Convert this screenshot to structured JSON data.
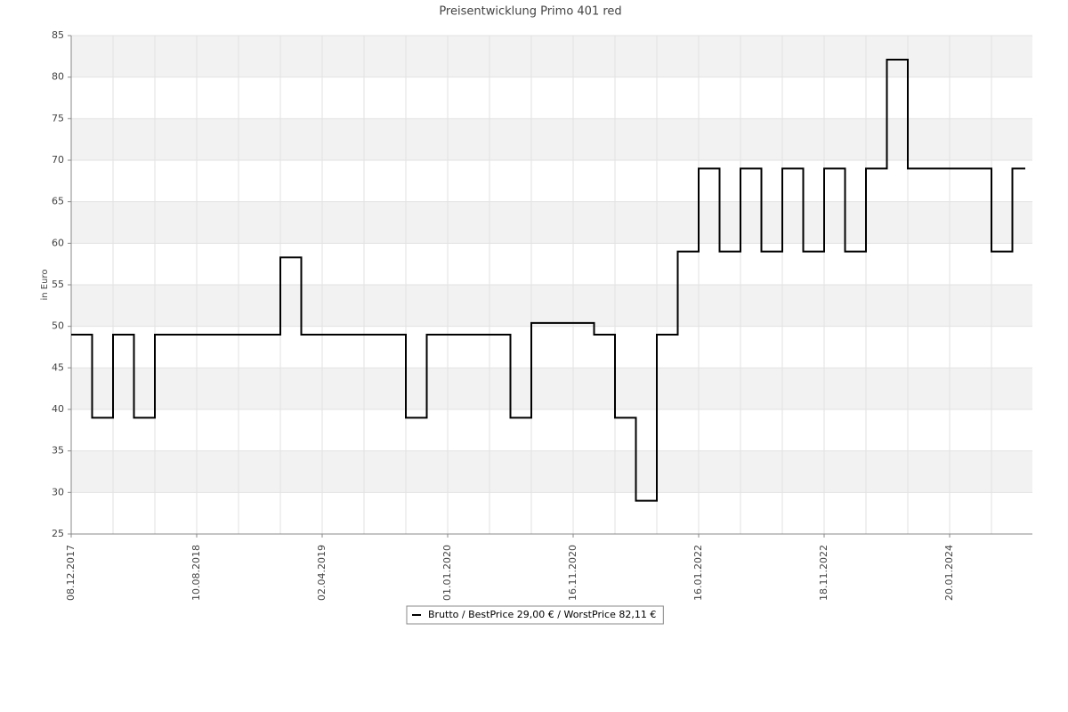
{
  "chart_data": {
    "type": "line",
    "step": true,
    "title": "Preisentwicklung Primo 401 red",
    "y_label": "in Euro",
    "categories": [
      "08.12.2017",
      null,
      null,
      null,
      null,
      null,
      "10.08.2018",
      null,
      null,
      null,
      null,
      null,
      "02.04.2019",
      null,
      null,
      null,
      null,
      null,
      "01.01.2020",
      null,
      null,
      null,
      null,
      null,
      "16.11.2020",
      null,
      null,
      null,
      null,
      null,
      "16.01.2022",
      null,
      null,
      null,
      null,
      null,
      "18.11.2022",
      null,
      null,
      null,
      null,
      null,
      "20.01.2024",
      null,
      null,
      null
    ],
    "series": [
      {
        "name": "Brutto / BestPrice  29,00 € / WorstPrice  82,11 €",
        "color": "#000000",
        "values": [
          49,
          39,
          49,
          39,
          49,
          49,
          49,
          49,
          49,
          49,
          58.3,
          49,
          49,
          49,
          49,
          49,
          39,
          49,
          49,
          49,
          49,
          39,
          50.4,
          50.4,
          50.4,
          49,
          39,
          29,
          49,
          59,
          69,
          59,
          69,
          59,
          69,
          59,
          69,
          59,
          69,
          82.11,
          69,
          69,
          69,
          69,
          59,
          69
        ]
      }
    ],
    "ylim": [
      25,
      85
    ],
    "yticks": [
      25,
      30,
      35,
      40,
      45,
      50,
      55,
      60,
      65,
      70,
      75,
      80,
      85
    ],
    "grid": true,
    "legend": "bottom"
  }
}
